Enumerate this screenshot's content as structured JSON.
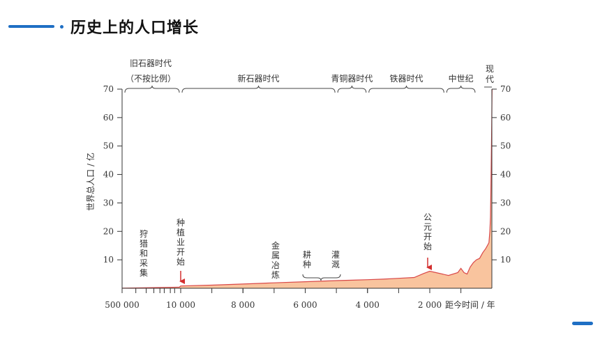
{
  "page": {
    "title": "历史上的人口增长",
    "accent": "#1f6fc4"
  },
  "chart_data": {
    "type": "area",
    "title": "",
    "ylabel": "世界总人口 / 亿",
    "xlabel": "距今时间 / 年",
    "ylim": [
      0,
      70
    ],
    "yticks": [
      10,
      20,
      30,
      40,
      50,
      60,
      70
    ],
    "ytick_labels": [
      "10",
      "20",
      "30",
      "40",
      "50",
      "60",
      "70"
    ],
    "xtick_labels": [
      {
        "label": "500 000",
        "years_ago": 500000
      },
      {
        "label": "10 000",
        "years_ago": 10000
      },
      {
        "label": "8 000",
        "years_ago": 8000
      },
      {
        "label": "6 000",
        "years_ago": 6000
      },
      {
        "label": "4 000",
        "years_ago": 4000
      },
      {
        "label": "2 000",
        "years_ago": 2000
      }
    ],
    "fill_color": "#f9c49e",
    "line_color": "#d94848",
    "series": [
      {
        "x_years_ago": [
          11000,
          10000,
          9000,
          8000,
          7000,
          6000,
          5000,
          4000,
          3500,
          3000,
          2500,
          2200,
          2000,
          1800,
          1400,
          1100,
          1000,
          900,
          800,
          700,
          600,
          500,
          400,
          300,
          200,
          150,
          100,
          70,
          50,
          30,
          10,
          0
        ],
        "y": [
          0.4,
          0.8,
          1.1,
          1.5,
          1.9,
          2.3,
          2.7,
          3.0,
          3.2,
          3.5,
          3.8,
          5.2,
          6.0,
          5.5,
          4.5,
          5.5,
          7.0,
          5.5,
          5.0,
          7.5,
          9.0,
          10.0,
          10.5,
          12.5,
          14.0,
          15.0,
          16.0,
          20.0,
          25.0,
          40.0,
          58.0,
          70.0
        ]
      }
    ],
    "periods": [
      {
        "label": "旧石器时代",
        "sub": "（不按比例）",
        "from_years_ago": 500000,
        "to_years_ago": 10000
      },
      {
        "label": "新石器时代",
        "from_years_ago": 10000,
        "to_years_ago": 5000
      },
      {
        "label": "青铜器时代",
        "from_years_ago": 5000,
        "to_years_ago": 4000
      },
      {
        "label": "铁器时代",
        "from_years_ago": 4000,
        "to_years_ago": 1500
      },
      {
        "label": "中世纪",
        "from_years_ago": 1500,
        "to_years_ago": 500
      },
      {
        "label": "现代",
        "from_years_ago": 500,
        "to_years_ago": 0
      }
    ],
    "annotations": [
      {
        "text": "狩猎和采集",
        "years_ago": 11500
      },
      {
        "text": "种植业开始",
        "years_ago": 10000,
        "arrow": true
      },
      {
        "text": "金属冶炼",
        "years_ago": 7000
      },
      {
        "text": "耕种",
        "years_ago": 6000
      },
      {
        "text": "灌溉",
        "years_ago": 5000
      },
      {
        "text": "公元开始",
        "years_ago": 2000,
        "arrow": true
      }
    ]
  }
}
